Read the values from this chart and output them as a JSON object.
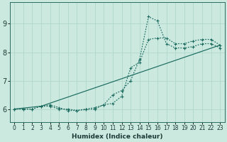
{
  "xlabel": "Humidex (Indice chaleur)",
  "bg_color": "#cce9e0",
  "grid_color": "#b0d8cc",
  "line_color": "#1a6b5e",
  "xlim": [
    -0.5,
    23.5
  ],
  "ylim": [
    5.55,
    9.75
  ],
  "xticks": [
    0,
    1,
    2,
    3,
    4,
    5,
    6,
    7,
    8,
    9,
    10,
    11,
    12,
    13,
    14,
    15,
    16,
    17,
    18,
    19,
    20,
    21,
    22,
    23
  ],
  "yticks": [
    6,
    7,
    8,
    9
  ],
  "line1_x": [
    0,
    1,
    2,
    3,
    4,
    5,
    6,
    7,
    8,
    9,
    10,
    11,
    12,
    13,
    14,
    15,
    16,
    17,
    18,
    19,
    20,
    21,
    22,
    23
  ],
  "line1_y": [
    6.0,
    6.0,
    6.0,
    6.1,
    6.15,
    6.05,
    5.95,
    5.95,
    5.98,
    6.0,
    6.15,
    6.2,
    6.45,
    7.45,
    7.65,
    8.45,
    8.5,
    8.5,
    8.3,
    8.3,
    8.4,
    8.45,
    8.45,
    8.25
  ],
  "line2_x": [
    0,
    1,
    2,
    3,
    4,
    5,
    6,
    7,
    8,
    9,
    10,
    11,
    12,
    13,
    14,
    15,
    16,
    17,
    18,
    19,
    20,
    21,
    22,
    23
  ],
  "line2_y": [
    6.0,
    6.0,
    6.0,
    6.1,
    6.1,
    6.0,
    6.0,
    5.95,
    6.0,
    6.05,
    6.15,
    6.5,
    6.65,
    7.0,
    7.75,
    9.25,
    9.1,
    8.3,
    8.15,
    8.15,
    8.2,
    8.3,
    8.3,
    8.15
  ],
  "line3_x": [
    0,
    3,
    23
  ],
  "line3_y": [
    6.0,
    6.1,
    8.25
  ]
}
